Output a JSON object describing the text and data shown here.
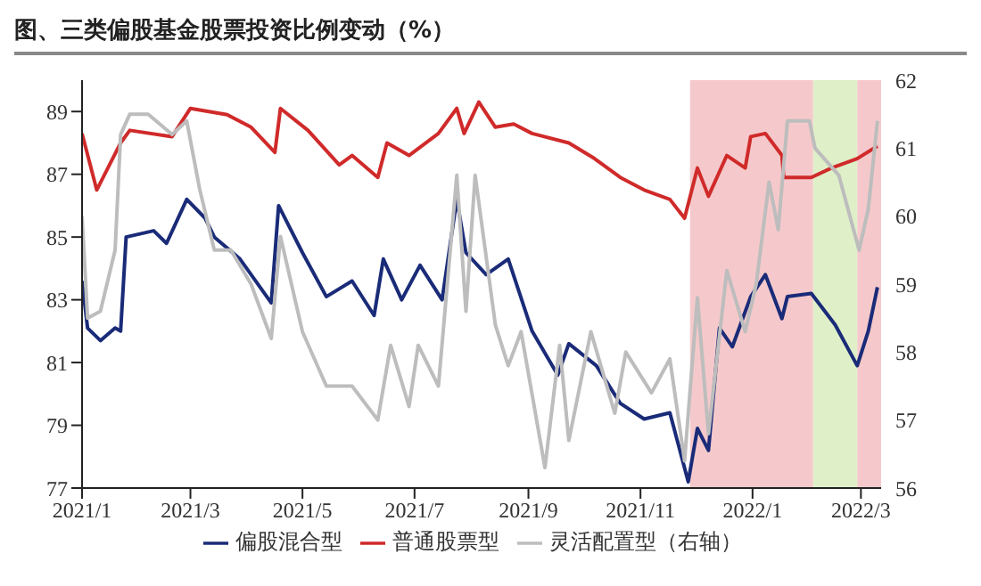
{
  "chart_data": {
    "type": "line",
    "title": "图、三类偏股基金股票投资比例变动（%）",
    "xlim": [
      "2021-01-01",
      "2022-03-12"
    ],
    "xticks": [
      {
        "value": "2021-01-01",
        "label": "2021/1"
      },
      {
        "value": "2021-03-01",
        "label": "2021/3"
      },
      {
        "value": "2021-05-01",
        "label": "2021/5"
      },
      {
        "value": "2021-07-01",
        "label": "2021/7"
      },
      {
        "value": "2021-09-01",
        "label": "2021/9"
      },
      {
        "value": "2021-11-01",
        "label": "2021/11"
      },
      {
        "value": "2022-01-01",
        "label": "2022/1"
      },
      {
        "value": "2022-03-01",
        "label": "2022/3"
      }
    ],
    "ylim": [
      77,
      90
    ],
    "yticks": [
      77,
      79,
      81,
      83,
      85,
      87,
      89
    ],
    "y2lim": [
      56,
      62
    ],
    "y2ticks": [
      56,
      57,
      58,
      59,
      60,
      61,
      62
    ],
    "legend": "bottom",
    "marker": "none",
    "bands": [
      {
        "axis": "x",
        "from": "2021-11-28",
        "to": "2022-02-03",
        "color": "#f5c9cb"
      },
      {
        "axis": "x",
        "from": "2022-02-03",
        "to": "2022-02-27",
        "color": "#dff0c8"
      },
      {
        "axis": "x",
        "from": "2022-02-27",
        "to": "2022-03-12",
        "color": "#f5c9cb"
      }
    ],
    "series": [
      {
        "name": "普通股票型",
        "color": "#d02a2a",
        "x": [
          "2021-01-01",
          "2021-01-09",
          "2021-01-22",
          "2021-01-27",
          "2021-02-19",
          "2021-03-01",
          "2021-03-21",
          "2021-04-03",
          "2021-04-16",
          "2021-04-19",
          "2021-05-04",
          "2021-05-21",
          "2021-05-28",
          "2021-06-11",
          "2021-06-16",
          "2021-06-28",
          "2021-07-14",
          "2021-07-24",
          "2021-07-28",
          "2021-08-05",
          "2021-08-14",
          "2021-08-24",
          "2021-09-03",
          "2021-09-23",
          "2021-10-07",
          "2021-10-21",
          "2021-11-03",
          "2021-11-17",
          "2021-11-25",
          "2021-12-02",
          "2021-12-08",
          "2021-12-18",
          "2021-12-28",
          "2021-12-31",
          "2022-01-08",
          "2022-01-17",
          "2022-01-18",
          "2022-02-02",
          "2022-02-13",
          "2022-02-27",
          "2022-03-10"
        ],
        "values": [
          88.3,
          86.5,
          88.0,
          88.4,
          88.2,
          89.1,
          88.9,
          88.5,
          87.7,
          89.1,
          88.4,
          87.3,
          87.6,
          86.9,
          88.0,
          87.6,
          88.3,
          89.1,
          88.3,
          89.3,
          88.5,
          88.6,
          88.3,
          88.0,
          87.5,
          86.9,
          86.5,
          86.2,
          85.6,
          87.2,
          86.3,
          87.6,
          87.2,
          88.2,
          88.3,
          87.6,
          86.9,
          86.9,
          87.2,
          87.5,
          87.9
        ]
      },
      {
        "name": "偏股混合型",
        "color": "#1a2b78",
        "x": [
          "2021-01-01",
          "2021-01-04",
          "2021-01-11",
          "2021-01-19",
          "2021-01-22",
          "2021-01-25",
          "2021-02-09",
          "2021-02-16",
          "2021-02-27",
          "2021-03-09",
          "2021-03-14",
          "2021-03-28",
          "2021-04-14",
          "2021-04-18",
          "2021-05-01",
          "2021-05-14",
          "2021-05-28",
          "2021-06-09",
          "2021-06-14",
          "2021-06-24",
          "2021-07-04",
          "2021-07-16",
          "2021-07-24",
          "2021-07-29",
          "2021-08-09",
          "2021-08-21",
          "2021-09-03",
          "2021-09-17",
          "2021-09-23",
          "2021-10-08",
          "2021-10-21",
          "2021-11-03",
          "2021-11-17",
          "2021-11-27",
          "2021-12-02",
          "2021-12-08",
          "2021-12-14",
          "2021-12-21",
          "2021-12-31",
          "2022-01-08",
          "2022-01-17",
          "2022-01-20",
          "2022-02-02",
          "2022-02-15",
          "2022-02-27",
          "2022-03-05",
          "2022-03-10"
        ],
        "values": [
          83.6,
          82.1,
          81.7,
          82.1,
          82.0,
          85.0,
          85.2,
          84.8,
          86.2,
          85.6,
          85.0,
          84.3,
          82.9,
          86.0,
          84.5,
          83.1,
          83.6,
          82.5,
          84.3,
          83.0,
          84.1,
          83.0,
          86.2,
          84.5,
          83.8,
          84.3,
          82.0,
          80.6,
          81.6,
          80.9,
          79.7,
          79.2,
          79.4,
          77.2,
          78.9,
          78.2,
          82.1,
          81.5,
          83.1,
          83.8,
          82.4,
          83.1,
          83.2,
          82.2,
          80.9,
          82.0,
          83.4
        ]
      },
      {
        "name": "灵活配置型（右轴）",
        "color": "#bdbdbd",
        "axis": "y2",
        "x": [
          "2021-01-01",
          "2021-01-04",
          "2021-01-11",
          "2021-01-19",
          "2021-01-22",
          "2021-01-27",
          "2021-02-06",
          "2021-02-19",
          "2021-02-27",
          "2021-03-06",
          "2021-03-14",
          "2021-03-23",
          "2021-04-03",
          "2021-04-14",
          "2021-04-19",
          "2021-05-01",
          "2021-05-14",
          "2021-05-28",
          "2021-06-11",
          "2021-06-18",
          "2021-06-28",
          "2021-07-03",
          "2021-07-14",
          "2021-07-24",
          "2021-07-29",
          "2021-08-03",
          "2021-08-14",
          "2021-08-21",
          "2021-08-28",
          "2021-09-10",
          "2021-09-18",
          "2021-09-23",
          "2021-10-05",
          "2021-10-18",
          "2021-10-24",
          "2021-11-07",
          "2021-11-17",
          "2021-11-25",
          "2021-12-02",
          "2021-12-08",
          "2021-12-18",
          "2021-12-28",
          "2022-01-03",
          "2022-01-10",
          "2022-01-15",
          "2022-01-20",
          "2022-02-01",
          "2022-02-04",
          "2022-02-17",
          "2022-02-28",
          "2022-03-05",
          "2022-03-10"
        ],
        "values": [
          60.0,
          58.5,
          58.6,
          59.5,
          61.2,
          61.5,
          61.5,
          61.2,
          61.4,
          60.4,
          59.5,
          59.5,
          59.0,
          58.2,
          59.7,
          58.3,
          57.5,
          57.5,
          57.0,
          58.1,
          57.2,
          58.1,
          57.5,
          60.6,
          58.6,
          60.6,
          58.4,
          57.8,
          58.3,
          56.3,
          58.1,
          56.7,
          58.3,
          57.1,
          58.0,
          57.4,
          57.9,
          56.4,
          58.8,
          56.8,
          59.2,
          58.3,
          59.0,
          60.5,
          59.8,
          61.4,
          61.4,
          61.0,
          60.6,
          59.5,
          60.1,
          61.4
        ]
      }
    ]
  }
}
